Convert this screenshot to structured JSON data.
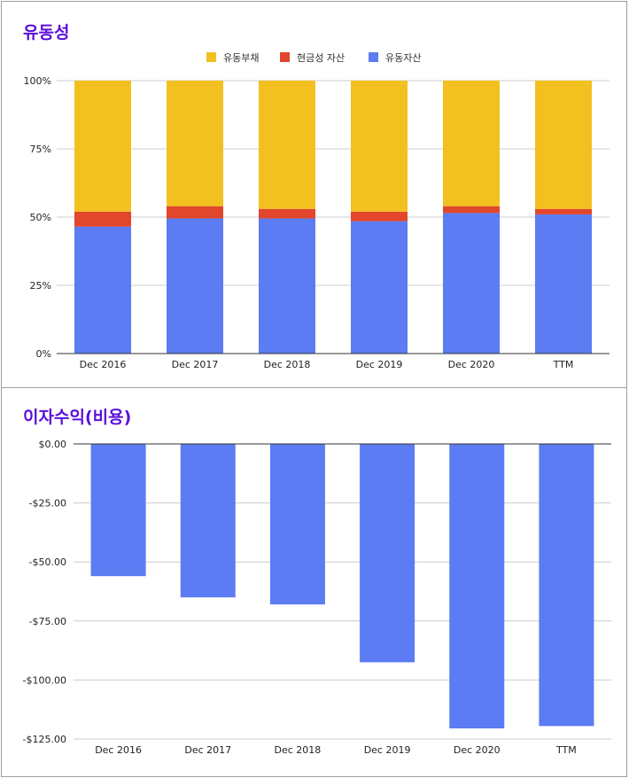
{
  "colors": {
    "title": "#5b0fd9",
    "current_liabilities": "#f2c120",
    "cash_assets": "#e2462c",
    "current_assets": "#5b7cf2",
    "grid": "#cccccc",
    "axis": "#333333"
  },
  "chart_data": [
    {
      "type": "bar",
      "stacked": true,
      "title": "유동성",
      "categories": [
        "Dec 2016",
        "Dec 2017",
        "Dec 2018",
        "Dec 2019",
        "Dec 2020",
        "TTM"
      ],
      "series": [
        {
          "name": "유동부채",
          "values": [
            48,
            46,
            47,
            48,
            46,
            47
          ]
        },
        {
          "name": "현금성 자산",
          "values": [
            5.5,
            4.5,
            3.5,
            3.5,
            2.5,
            2
          ]
        },
        {
          "name": "유동자산",
          "values": [
            46.5,
            49.5,
            49.5,
            48.5,
            51.5,
            51
          ]
        }
      ],
      "legend_order": [
        0,
        1,
        2
      ],
      "yticks": [
        "0%",
        "25%",
        "50%",
        "75%",
        "100%"
      ],
      "ytick_values": [
        0,
        25,
        50,
        75,
        100
      ],
      "ylim": [
        0,
        100
      ],
      "legend": "top-center",
      "grid": true
    },
    {
      "type": "bar",
      "title": "이자수익(비용)",
      "categories": [
        "Dec 2016",
        "Dec 2017",
        "Dec 2018",
        "Dec 2019",
        "Dec 2020",
        "TTM"
      ],
      "series": [
        {
          "name": "이자수익(비용)",
          "values": [
            -56,
            -65,
            -68,
            -92.5,
            -120.5,
            -119.5
          ]
        }
      ],
      "yticks": [
        "$0.00",
        "-$25.00",
        "-$50.00",
        "-$75.00",
        "-$100.00",
        "-$125.00"
      ],
      "ytick_values": [
        0,
        -25,
        -50,
        -75,
        -100,
        -125
      ],
      "ylim": [
        -125,
        0
      ],
      "grid": true
    }
  ]
}
